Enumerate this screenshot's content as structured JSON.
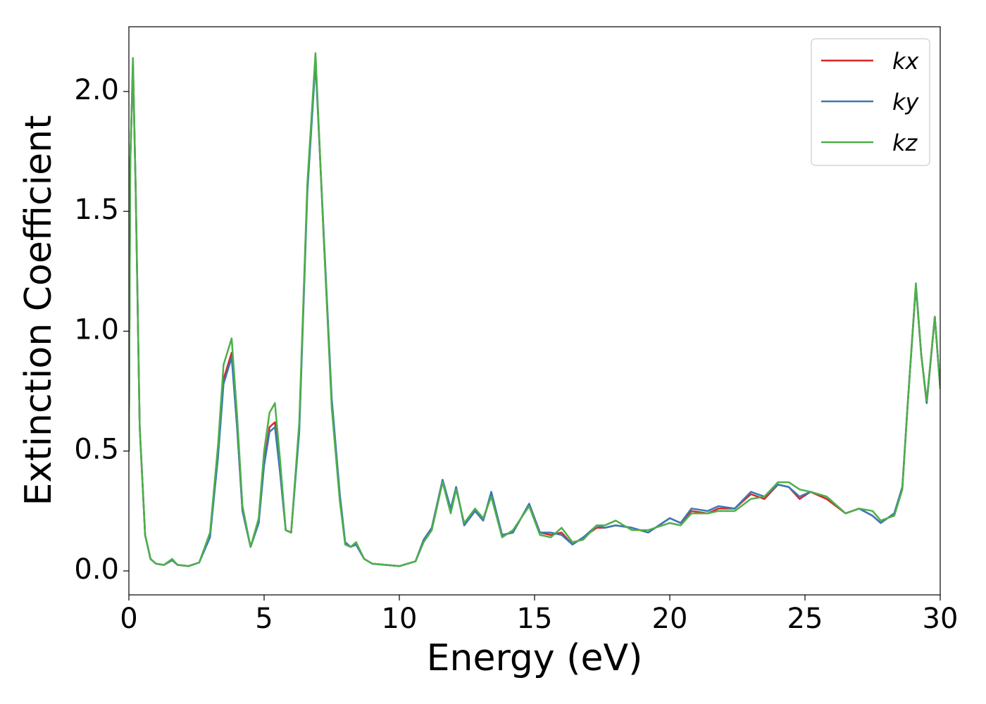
{
  "chart_data": {
    "type": "line",
    "x_label": "Energy (eV)",
    "y_label": "Extinction Coefficient",
    "x": [
      0,
      0.05,
      0.15,
      0.25,
      0.4,
      0.6,
      0.8,
      1.0,
      1.3,
      1.6,
      1.8,
      2.2,
      2.6,
      3.0,
      3.3,
      3.5,
      3.8,
      4.0,
      4.2,
      4.5,
      4.8,
      5.0,
      5.2,
      5.4,
      5.6,
      5.8,
      6.0,
      6.3,
      6.6,
      6.9,
      7.2,
      7.5,
      7.8,
      8.0,
      8.2,
      8.4,
      8.7,
      9.0,
      10.0,
      10.6,
      10.9,
      11.2,
      11.6,
      11.9,
      12.1,
      12.4,
      12.8,
      13.1,
      13.4,
      13.8,
      14.2,
      14.8,
      15.2,
      15.6,
      16.0,
      16.4,
      16.8,
      17.3,
      17.6,
      18.0,
      18.6,
      19.2,
      20.0,
      20.4,
      20.8,
      21.4,
      21.8,
      22.4,
      23.0,
      23.5,
      24.0,
      24.4,
      24.8,
      25.2,
      25.8,
      26.5,
      27.0,
      27.5,
      27.8,
      28.3,
      28.6,
      28.8,
      29.1,
      29.3,
      29.5,
      29.8,
      30.0
    ],
    "series": [
      {
        "name": "kx",
        "color": "#d62728",
        "values": [
          0.5,
          1.7,
          2.12,
          1.6,
          0.6,
          0.15,
          0.05,
          0.03,
          0.025,
          0.045,
          0.025,
          0.02,
          0.035,
          0.15,
          0.5,
          0.8,
          0.91,
          0.6,
          0.25,
          0.1,
          0.2,
          0.45,
          0.6,
          0.62,
          0.4,
          0.17,
          0.16,
          0.6,
          1.6,
          2.14,
          1.4,
          0.7,
          0.3,
          0.11,
          0.1,
          0.11,
          0.05,
          0.03,
          0.02,
          0.04,
          0.13,
          0.18,
          0.38,
          0.25,
          0.35,
          0.19,
          0.25,
          0.21,
          0.32,
          0.15,
          0.16,
          0.28,
          0.16,
          0.15,
          0.16,
          0.11,
          0.14,
          0.18,
          0.18,
          0.19,
          0.18,
          0.16,
          0.22,
          0.2,
          0.25,
          0.24,
          0.26,
          0.26,
          0.32,
          0.3,
          0.36,
          0.35,
          0.3,
          0.33,
          0.3,
          0.24,
          0.26,
          0.23,
          0.2,
          0.24,
          0.35,
          0.7,
          1.19,
          0.9,
          0.7,
          1.06,
          0.76
        ]
      },
      {
        "name": "ky",
        "color": "#3a78b5",
        "values": [
          0.5,
          1.7,
          2.11,
          1.6,
          0.6,
          0.15,
          0.05,
          0.03,
          0.025,
          0.045,
          0.025,
          0.02,
          0.035,
          0.14,
          0.48,
          0.78,
          0.89,
          0.6,
          0.25,
          0.1,
          0.2,
          0.44,
          0.58,
          0.6,
          0.4,
          0.17,
          0.16,
          0.58,
          1.58,
          2.12,
          1.42,
          0.72,
          0.32,
          0.12,
          0.1,
          0.11,
          0.05,
          0.03,
          0.02,
          0.04,
          0.13,
          0.18,
          0.38,
          0.26,
          0.35,
          0.19,
          0.25,
          0.21,
          0.33,
          0.15,
          0.16,
          0.28,
          0.16,
          0.16,
          0.15,
          0.11,
          0.14,
          0.19,
          0.18,
          0.19,
          0.18,
          0.16,
          0.22,
          0.2,
          0.26,
          0.25,
          0.27,
          0.26,
          0.33,
          0.31,
          0.36,
          0.35,
          0.31,
          0.33,
          0.31,
          0.24,
          0.26,
          0.23,
          0.2,
          0.24,
          0.35,
          0.7,
          1.19,
          0.9,
          0.7,
          1.06,
          0.76
        ]
      },
      {
        "name": "kz",
        "color": "#4daf4a",
        "values": [
          0.5,
          1.7,
          2.14,
          1.6,
          0.6,
          0.15,
          0.05,
          0.03,
          0.025,
          0.05,
          0.025,
          0.02,
          0.035,
          0.16,
          0.53,
          0.86,
          0.97,
          0.65,
          0.27,
          0.1,
          0.22,
          0.5,
          0.66,
          0.7,
          0.45,
          0.17,
          0.16,
          0.62,
          1.62,
          2.16,
          1.4,
          0.68,
          0.29,
          0.11,
          0.1,
          0.12,
          0.05,
          0.03,
          0.02,
          0.04,
          0.12,
          0.17,
          0.37,
          0.24,
          0.34,
          0.2,
          0.26,
          0.22,
          0.31,
          0.14,
          0.17,
          0.27,
          0.15,
          0.14,
          0.18,
          0.12,
          0.13,
          0.19,
          0.19,
          0.21,
          0.17,
          0.17,
          0.2,
          0.19,
          0.24,
          0.24,
          0.25,
          0.25,
          0.3,
          0.31,
          0.37,
          0.37,
          0.34,
          0.33,
          0.31,
          0.24,
          0.26,
          0.25,
          0.21,
          0.23,
          0.34,
          0.7,
          1.2,
          0.9,
          0.71,
          1.06,
          0.76
        ]
      }
    ],
    "xlim": [
      0,
      30
    ],
    "xticks": [
      0,
      5,
      10,
      15,
      20,
      25,
      30
    ],
    "ylim": [
      -0.1,
      2.27
    ],
    "yticks": [
      {
        "value": 0,
        "label": "0.0"
      },
      0.5,
      {
        "value": 1,
        "label": "1.0"
      },
      1.5,
      {
        "value": 2,
        "label": "2.0"
      }
    ],
    "grid": false,
    "legend": "upper right"
  }
}
